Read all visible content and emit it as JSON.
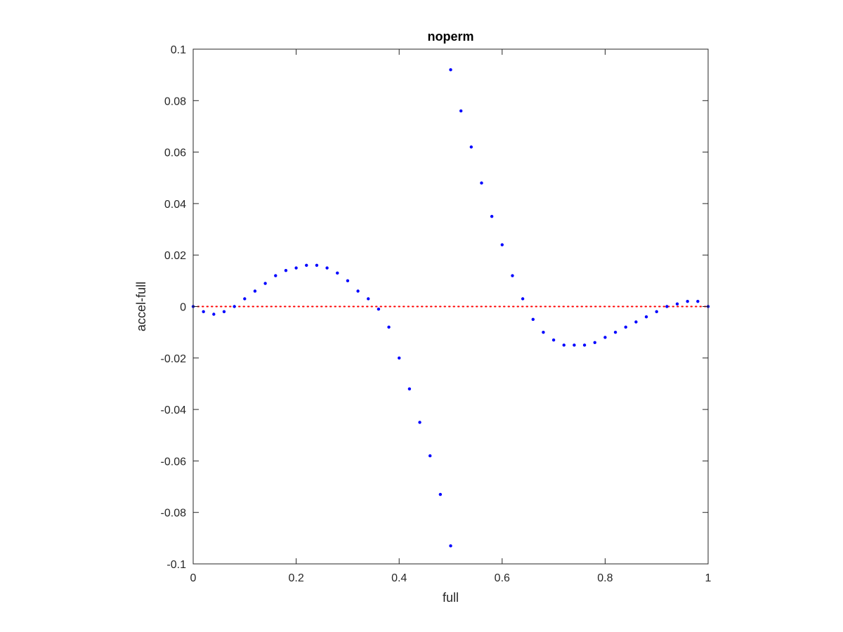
{
  "chart_data": {
    "type": "scatter",
    "title": "noperm",
    "xlabel": "full",
    "ylabel": "accel-full",
    "xlim": [
      0,
      1
    ],
    "ylim": [
      -0.1,
      0.1
    ],
    "x_ticks": [
      0,
      0.2,
      0.4,
      0.6,
      0.8,
      1
    ],
    "x_tick_labels": [
      "0",
      "0.2",
      "0.4",
      "0.6",
      "0.8",
      "1"
    ],
    "y_ticks": [
      -0.1,
      -0.08,
      -0.06,
      -0.04,
      -0.02,
      0,
      0.02,
      0.04,
      0.06,
      0.08,
      0.1
    ],
    "y_tick_labels": [
      "-0.1",
      "-0.08",
      "-0.06",
      "-0.04",
      "-0.02",
      "0",
      "0.02",
      "0.04",
      "0.06",
      "0.08",
      "0.1"
    ],
    "grid": false,
    "reference_line": {
      "y": 0,
      "style": "dotted",
      "color": "#ff0000"
    },
    "series": [
      {
        "color": "#0000ff",
        "marker": "dot",
        "x": [
          0,
          0.02,
          0.04,
          0.06,
          0.08,
          0.1,
          0.12,
          0.14,
          0.16,
          0.18,
          0.2,
          0.22,
          0.24,
          0.26,
          0.28,
          0.3,
          0.32,
          0.34,
          0.36,
          0.38,
          0.4,
          0.42,
          0.44,
          0.46,
          0.48,
          0.5,
          0.5,
          0.52,
          0.54,
          0.56,
          0.58,
          0.6,
          0.62,
          0.64,
          0.66,
          0.68,
          0.7,
          0.72,
          0.74,
          0.76,
          0.78,
          0.8,
          0.82,
          0.84,
          0.86,
          0.88,
          0.9,
          0.92,
          0.94,
          0.96,
          0.98,
          1
        ],
        "y": [
          0,
          -0.002,
          -0.003,
          -0.002,
          0.0,
          0.003,
          0.006,
          0.009,
          0.012,
          0.014,
          0.015,
          0.016,
          0.016,
          0.015,
          0.013,
          0.01,
          0.006,
          0.003,
          -0.001,
          -0.008,
          -0.02,
          -0.032,
          -0.045,
          -0.058,
          -0.073,
          -0.093,
          0.092,
          0.076,
          0.062,
          0.048,
          0.035,
          0.024,
          0.012,
          0.003,
          -0.005,
          -0.01,
          -0.013,
          -0.015,
          -0.015,
          -0.015,
          -0.014,
          -0.012,
          -0.01,
          -0.008,
          -0.006,
          -0.004,
          -0.002,
          0.0,
          0.001,
          0.002,
          0.002,
          0.0
        ]
      }
    ]
  }
}
